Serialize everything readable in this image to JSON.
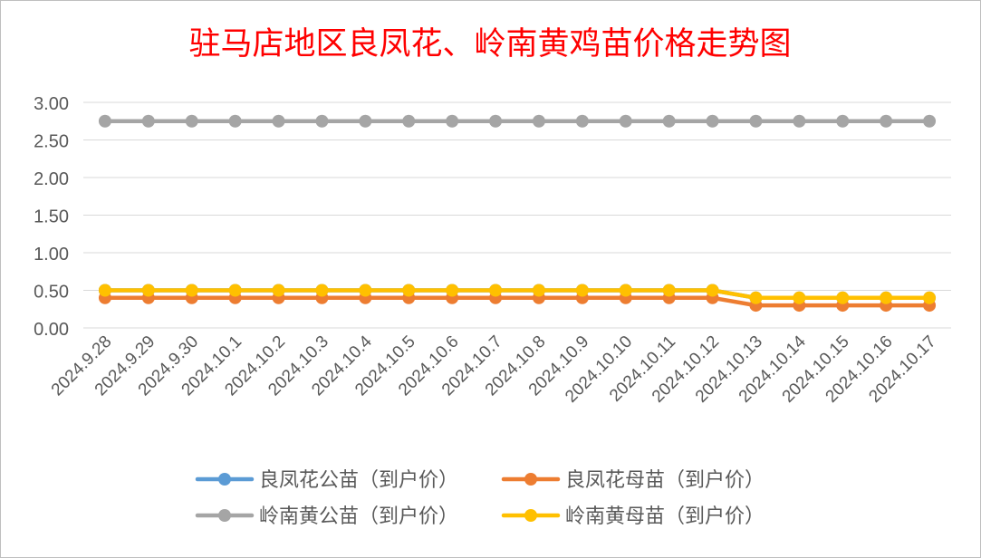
{
  "chart_data": {
    "type": "line",
    "title": "驻马店地区良凤花、岭南黄鸡苗价格走势图",
    "xlabel": "",
    "ylabel": "",
    "ylim": [
      0,
      3
    ],
    "yticks": [
      "3.00",
      "2.50",
      "2.00",
      "1.50",
      "1.00",
      "0.50",
      "0.00"
    ],
    "grid": "horizontal",
    "legend_position": "bottom",
    "categories": [
      "2024.9.28",
      "2024.9.29",
      "2024.9.30",
      "2024.10.1",
      "2024.10.2",
      "2024.10.3",
      "2024.10.4",
      "2024.10.5",
      "2024.10.6",
      "2024.10.7",
      "2024.10.8",
      "2024.10.9",
      "2024.10.10",
      "2024.10.11",
      "2024.10.12",
      "2024.10.13",
      "2024.10.14",
      "2024.10.15",
      "2024.10.16",
      "2024.10.17"
    ],
    "series": [
      {
        "name": "良凤花公苗（到户价）",
        "color": "#5b9bd5",
        "values": [
          0.5,
          0.5,
          0.5,
          0.5,
          0.5,
          0.5,
          0.5,
          0.5,
          0.5,
          0.5,
          0.5,
          0.5,
          0.5,
          0.5,
          0.5,
          0.4,
          0.4,
          0.4,
          0.4,
          0.4
        ]
      },
      {
        "name": "良凤花母苗（到户价）",
        "color": "#ed7d31",
        "values": [
          0.4,
          0.4,
          0.4,
          0.4,
          0.4,
          0.4,
          0.4,
          0.4,
          0.4,
          0.4,
          0.4,
          0.4,
          0.4,
          0.4,
          0.4,
          0.3,
          0.3,
          0.3,
          0.3,
          0.3
        ]
      },
      {
        "name": "岭南黄公苗（到户价）",
        "color": "#a5a5a5",
        "values": [
          2.75,
          2.75,
          2.75,
          2.75,
          2.75,
          2.75,
          2.75,
          2.75,
          2.75,
          2.75,
          2.75,
          2.75,
          2.75,
          2.75,
          2.75,
          2.75,
          2.75,
          2.75,
          2.75,
          2.75
        ]
      },
      {
        "name": "岭南黄母苗（到户价）",
        "color": "#ffc000",
        "values": [
          0.5,
          0.5,
          0.5,
          0.5,
          0.5,
          0.5,
          0.5,
          0.5,
          0.5,
          0.5,
          0.5,
          0.5,
          0.5,
          0.5,
          0.5,
          0.4,
          0.4,
          0.4,
          0.4,
          0.4
        ]
      }
    ],
    "title_color": "#ff0000",
    "border_color": "#bfbfbf",
    "gridline_color": "#d9d9d9",
    "tick_label_color": "#595959"
  }
}
